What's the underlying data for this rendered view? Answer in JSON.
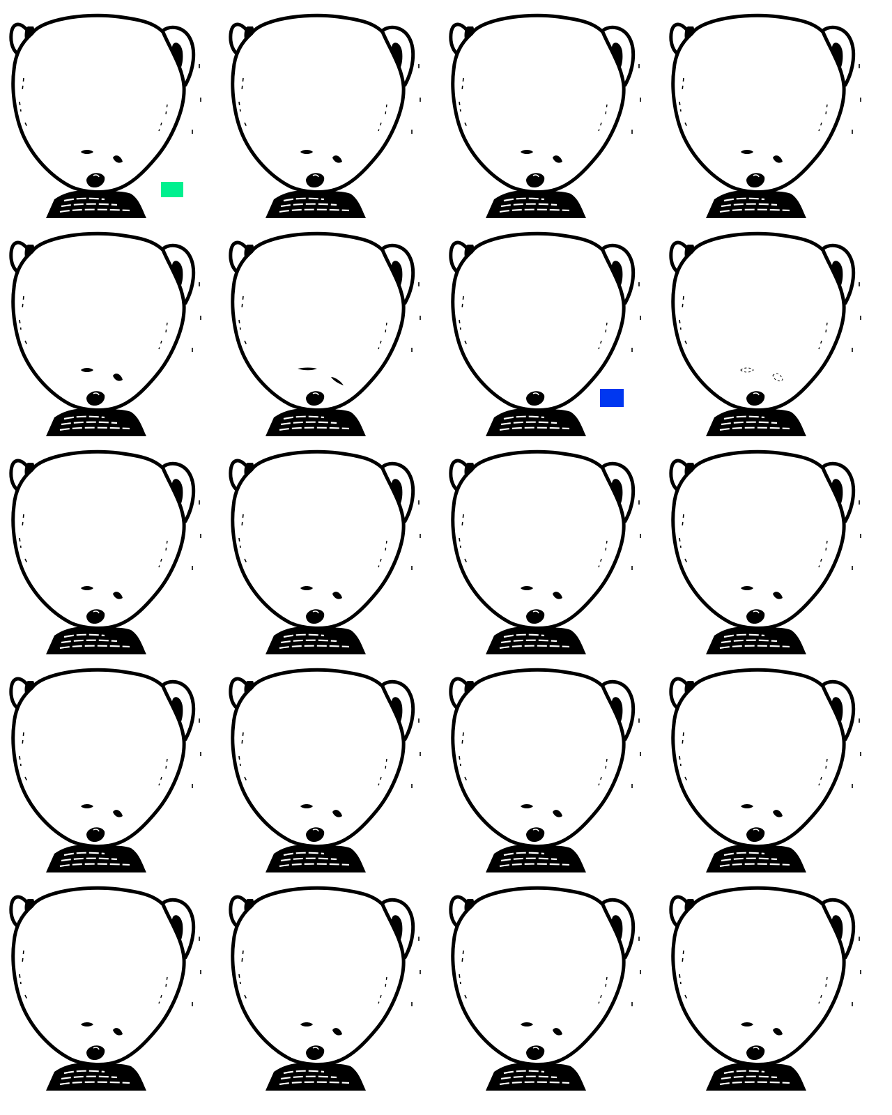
{
  "game": {
    "grid": {
      "rows": 5,
      "cols": 4
    },
    "tile_subject": "teddy-bear-icon",
    "tiles": [
      {
        "row": 1,
        "col": 1,
        "variant": "normal",
        "marker": "green"
      },
      {
        "row": 1,
        "col": 2,
        "variant": "normal",
        "marker": null
      },
      {
        "row": 1,
        "col": 3,
        "variant": "normal",
        "marker": null
      },
      {
        "row": 1,
        "col": 4,
        "variant": "normal",
        "marker": null
      },
      {
        "row": 2,
        "col": 1,
        "variant": "normal",
        "marker": null
      },
      {
        "row": 2,
        "col": 2,
        "variant": "squint",
        "marker": null
      },
      {
        "row": 2,
        "col": 3,
        "variant": "no-eyes",
        "marker": "blue"
      },
      {
        "row": 2,
        "col": 4,
        "variant": "faded-eyes",
        "marker": null
      },
      {
        "row": 3,
        "col": 1,
        "variant": "normal",
        "marker": null
      },
      {
        "row": 3,
        "col": 2,
        "variant": "normal",
        "marker": null
      },
      {
        "row": 3,
        "col": 3,
        "variant": "normal",
        "marker": null
      },
      {
        "row": 3,
        "col": 4,
        "variant": "normal",
        "marker": null
      },
      {
        "row": 4,
        "col": 1,
        "variant": "normal",
        "marker": null
      },
      {
        "row": 4,
        "col": 2,
        "variant": "normal",
        "marker": null
      },
      {
        "row": 4,
        "col": 3,
        "variant": "normal",
        "marker": null
      },
      {
        "row": 4,
        "col": 4,
        "variant": "normal",
        "marker": null
      },
      {
        "row": 5,
        "col": 1,
        "variant": "normal",
        "marker": null
      },
      {
        "row": 5,
        "col": 2,
        "variant": "normal",
        "marker": null
      },
      {
        "row": 5,
        "col": 3,
        "variant": "normal",
        "marker": null
      },
      {
        "row": 5,
        "col": 4,
        "variant": "normal",
        "marker": null
      }
    ]
  },
  "colors": {
    "background": "#ffffff",
    "ink": "#000000",
    "marker_green": "#00f08f",
    "marker_blue": "#0037f0"
  }
}
